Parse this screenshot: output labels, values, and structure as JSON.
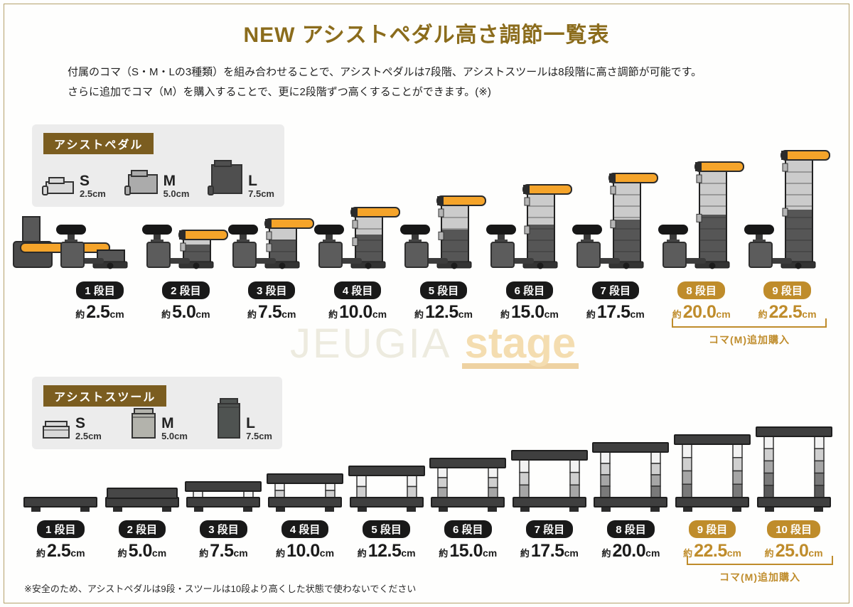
{
  "page": {
    "title": "NEW アシストペダル高さ調節一覧表",
    "intro_lines": [
      "付属のコマ（S・M・Lの3種類）を組み合わせることで、アシストペダルは7段階、アシストスツールは8段階に高さ調節が可能です。",
      "さらに追加でコマ（M）を購入することで、更に2段階ずつ高くすることができます。(※)"
    ],
    "footnote": "※安全のため、アシストペダルは9段・スツールは10段より高くした状態で使わないでください",
    "watermark": {
      "left": "JEUGIA",
      "right": "stage"
    }
  },
  "colors": {
    "title_gold": "#8b6c1c",
    "accent_gold": "#bf8c2b",
    "section_badge_brown": "#7b5d20",
    "badge_black": "#191919",
    "pedal_orange": "#f5a42a",
    "frame_tan": "#b5a26b"
  },
  "koma_sizes": [
    {
      "label": "S",
      "size": "2.5cm"
    },
    {
      "label": "M",
      "size": "5.0cm"
    },
    {
      "label": "L",
      "size": "7.5cm"
    }
  ],
  "pedal_section": {
    "badge": "アシストペダル",
    "addon_note": "コマ(M)追加購入",
    "levels": [
      {
        "step": "1 段目",
        "approx": "約",
        "value": "2.5",
        "unit": "cm",
        "highlight": false
      },
      {
        "step": "2 段目",
        "approx": "約",
        "value": "5.0",
        "unit": "cm",
        "highlight": false
      },
      {
        "step": "3 段目",
        "approx": "約",
        "value": "7.5",
        "unit": "cm",
        "highlight": false
      },
      {
        "step": "4 段目",
        "approx": "約",
        "value": "10.0",
        "unit": "cm",
        "highlight": false
      },
      {
        "step": "5 段目",
        "approx": "約",
        "value": "12.5",
        "unit": "cm",
        "highlight": false
      },
      {
        "step": "6 段目",
        "approx": "約",
        "value": "15.0",
        "unit": "cm",
        "highlight": false
      },
      {
        "step": "7 段目",
        "approx": "約",
        "value": "17.5",
        "unit": "cm",
        "highlight": false
      },
      {
        "step": "8 段目",
        "approx": "約",
        "value": "20.0",
        "unit": "cm",
        "highlight": true
      },
      {
        "step": "9 段目",
        "approx": "約",
        "value": "22.5",
        "unit": "cm",
        "highlight": true
      }
    ]
  },
  "stool_section": {
    "badge": "アシストスツール",
    "addon_note": "コマ(M)追加購入",
    "levels": [
      {
        "step": "1 段目",
        "approx": "約",
        "value": "2.5",
        "unit": "cm",
        "highlight": false
      },
      {
        "step": "2 段目",
        "approx": "約",
        "value": "5.0",
        "unit": "cm",
        "highlight": false
      },
      {
        "step": "3 段目",
        "approx": "約",
        "value": "7.5",
        "unit": "cm",
        "highlight": false
      },
      {
        "step": "4 段目",
        "approx": "約",
        "value": "10.0",
        "unit": "cm",
        "highlight": false
      },
      {
        "step": "5 段目",
        "approx": "約",
        "value": "12.5",
        "unit": "cm",
        "highlight": false
      },
      {
        "step": "6 段目",
        "approx": "約",
        "value": "15.0",
        "unit": "cm",
        "highlight": false
      },
      {
        "step": "7 段目",
        "approx": "約",
        "value": "17.5",
        "unit": "cm",
        "highlight": false
      },
      {
        "step": "8 段目",
        "approx": "約",
        "value": "20.0",
        "unit": "cm",
        "highlight": false
      },
      {
        "step": "9 段目",
        "approx": "約",
        "value": "22.5",
        "unit": "cm",
        "highlight": true
      },
      {
        "step": "10 段目",
        "approx": "約",
        "value": "25.0",
        "unit": "cm",
        "highlight": true
      }
    ]
  }
}
